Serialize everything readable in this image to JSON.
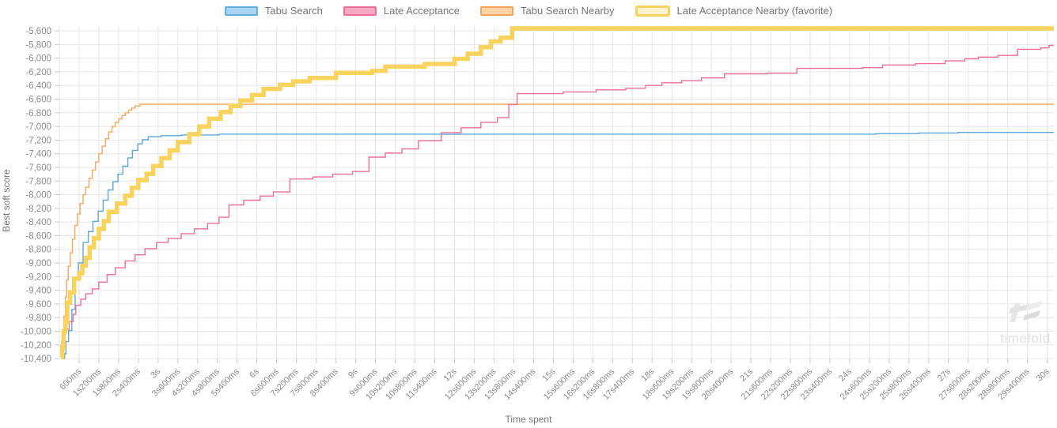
{
  "watermark": {
    "label": "timefold"
  },
  "chart_data": {
    "type": "line",
    "subtype": "step-after",
    "title": "",
    "xlabel": "Time spent",
    "ylabel": "Best soft score",
    "grid": true,
    "legend_position": "top-center",
    "x_domain_seconds": [
      0,
      30.2
    ],
    "y_domain": [
      -10480,
      -5530
    ],
    "y_ticks": [
      -5600,
      -5800,
      -6000,
      -6200,
      -6400,
      -6600,
      -6800,
      -7000,
      -7200,
      -7400,
      -7600,
      -7800,
      -8000,
      -8200,
      -8400,
      -8600,
      -8800,
      -9000,
      -9200,
      -9400,
      -9600,
      -9800,
      -10000,
      -10200,
      -10400
    ],
    "x_tick_interval_seconds": 0.6,
    "x_tick_labels": [
      "600ms",
      "1s200ms",
      "1s800ms",
      "2s400ms",
      "3s",
      "3s600ms",
      "4s200ms",
      "4s800ms",
      "5s400ms",
      "6s",
      "6s600ms",
      "7s200ms",
      "7s800ms",
      "8s400ms",
      "9s",
      "9s600ms",
      "10s200ms",
      "10s800ms",
      "11s400ms",
      "12s",
      "12s600ms",
      "13s200ms",
      "13s800ms",
      "14s400ms",
      "15s",
      "15s600ms",
      "16s200ms",
      "16s800ms",
      "17s400ms",
      "18s",
      "18s600ms",
      "19s200ms",
      "19s800ms",
      "20s400ms",
      "21s",
      "21s600ms",
      "22s200ms",
      "22s800ms",
      "23s400ms",
      "24s",
      "24s600ms",
      "25s200ms",
      "25s800ms",
      "26s400ms",
      "27s",
      "27s600ms",
      "28s200ms",
      "28s800ms",
      "29s400ms",
      "30s"
    ],
    "legend": [
      {
        "label": "Tabu Search",
        "fill": "#a9d5f2",
        "stroke": "#62aede",
        "border_width": 2
      },
      {
        "label": "Late Acceptance",
        "fill": "#f7a8c3",
        "stroke": "#ee6e99",
        "border_width": 2
      },
      {
        "label": "Tabu Search Nearby",
        "fill": "#fbd3a4",
        "stroke": "#f6a45a",
        "border_width": 2
      },
      {
        "label": "Late Acceptance Nearby (favorite)",
        "fill": "#fdf2cb",
        "stroke": "#f8d25e",
        "border_width": 3
      }
    ],
    "series": [
      {
        "name": "Tabu Search Nearby",
        "color": "#f6a85c",
        "width": 1.4,
        "points": [
          [
            0.04,
            -10250
          ],
          [
            0.07,
            -10150
          ],
          [
            0.1,
            -10000
          ],
          [
            0.14,
            -9780
          ],
          [
            0.18,
            -9500
          ],
          [
            0.22,
            -9250
          ],
          [
            0.27,
            -9050
          ],
          [
            0.33,
            -8850
          ],
          [
            0.4,
            -8650
          ],
          [
            0.47,
            -8450
          ],
          [
            0.55,
            -8280
          ],
          [
            0.63,
            -8130
          ],
          [
            0.72,
            -8000
          ],
          [
            0.8,
            -7890
          ],
          [
            0.9,
            -7760
          ],
          [
            1.0,
            -7640
          ],
          [
            1.1,
            -7520
          ],
          [
            1.2,
            -7400
          ],
          [
            1.3,
            -7290
          ],
          [
            1.4,
            -7180
          ],
          [
            1.5,
            -7080
          ],
          [
            1.6,
            -7000
          ],
          [
            1.7,
            -6940
          ],
          [
            1.8,
            -6890
          ],
          [
            1.9,
            -6840
          ],
          [
            2.0,
            -6800
          ],
          [
            2.1,
            -6760
          ],
          [
            2.2,
            -6730
          ],
          [
            2.3,
            -6700
          ],
          [
            2.45,
            -6675
          ],
          [
            30.2,
            -6675
          ]
        ]
      },
      {
        "name": "Tabu Search",
        "color": "#5da8db",
        "width": 1.4,
        "points": [
          [
            0.12,
            -10400
          ],
          [
            0.16,
            -10330
          ],
          [
            0.2,
            -10150
          ],
          [
            0.28,
            -9990
          ],
          [
            0.38,
            -9680
          ],
          [
            0.48,
            -9230
          ],
          [
            0.58,
            -9000
          ],
          [
            0.72,
            -8700
          ],
          [
            0.88,
            -8540
          ],
          [
            1.02,
            -8390
          ],
          [
            1.18,
            -8240
          ],
          [
            1.33,
            -8080
          ],
          [
            1.48,
            -7930
          ],
          [
            1.63,
            -7810
          ],
          [
            1.78,
            -7700
          ],
          [
            1.93,
            -7580
          ],
          [
            2.08,
            -7460
          ],
          [
            2.22,
            -7350
          ],
          [
            2.38,
            -7255
          ],
          [
            2.52,
            -7195
          ],
          [
            2.7,
            -7150
          ],
          [
            3.1,
            -7135
          ],
          [
            3.7,
            -7125
          ],
          [
            4.85,
            -7113
          ],
          [
            24.8,
            -7105
          ],
          [
            26.1,
            -7096
          ],
          [
            27.3,
            -7088
          ],
          [
            30.2,
            -7088
          ]
        ]
      },
      {
        "name": "Late Acceptance",
        "color": "#ee6e99",
        "width": 1.4,
        "points": [
          [
            0.05,
            -10280
          ],
          [
            0.1,
            -10140
          ],
          [
            0.18,
            -9970
          ],
          [
            0.3,
            -9860
          ],
          [
            0.42,
            -9750
          ],
          [
            0.5,
            -9620
          ],
          [
            0.65,
            -9530
          ],
          [
            0.8,
            -9450
          ],
          [
            1.0,
            -9380
          ],
          [
            1.2,
            -9280
          ],
          [
            1.45,
            -9170
          ],
          [
            1.7,
            -9070
          ],
          [
            2.0,
            -8970
          ],
          [
            2.3,
            -8880
          ],
          [
            2.6,
            -8790
          ],
          [
            2.95,
            -8700
          ],
          [
            3.3,
            -8640
          ],
          [
            3.7,
            -8570
          ],
          [
            4.1,
            -8500
          ],
          [
            4.5,
            -8420
          ],
          [
            4.85,
            -8330
          ],
          [
            5.15,
            -8150
          ],
          [
            5.6,
            -8080
          ],
          [
            6.1,
            -8020
          ],
          [
            6.5,
            -7960
          ],
          [
            7.0,
            -7770
          ],
          [
            7.7,
            -7740
          ],
          [
            8.3,
            -7700
          ],
          [
            8.9,
            -7660
          ],
          [
            9.4,
            -7450
          ],
          [
            9.9,
            -7390
          ],
          [
            10.4,
            -7330
          ],
          [
            10.9,
            -7210
          ],
          [
            11.6,
            -7090
          ],
          [
            12.2,
            -7020
          ],
          [
            12.8,
            -6940
          ],
          [
            13.3,
            -6870
          ],
          [
            13.65,
            -6680
          ],
          [
            13.9,
            -6520
          ],
          [
            15.3,
            -6495
          ],
          [
            16.3,
            -6465
          ],
          [
            17.2,
            -6440
          ],
          [
            17.8,
            -6400
          ],
          [
            18.3,
            -6360
          ],
          [
            18.9,
            -6330
          ],
          [
            19.5,
            -6290
          ],
          [
            20.2,
            -6230
          ],
          [
            21.5,
            -6220
          ],
          [
            22.4,
            -6150
          ],
          [
            24.4,
            -6140
          ],
          [
            25.0,
            -6100
          ],
          [
            26.0,
            -6080
          ],
          [
            26.9,
            -6040
          ],
          [
            27.5,
            -6010
          ],
          [
            27.9,
            -5985
          ],
          [
            28.5,
            -5960
          ],
          [
            29.1,
            -5870
          ],
          [
            29.8,
            -5850
          ],
          [
            30.05,
            -5815
          ],
          [
            30.2,
            -5815
          ]
        ]
      },
      {
        "name": "Late Acceptance Nearby (favorite)",
        "color": "#f8d45e",
        "width": 5.5,
        "points": [
          [
            0.05,
            -10380
          ],
          [
            0.09,
            -10240
          ],
          [
            0.13,
            -10000
          ],
          [
            0.18,
            -9860
          ],
          [
            0.24,
            -9580
          ],
          [
            0.33,
            -9430
          ],
          [
            0.45,
            -9230
          ],
          [
            0.6,
            -9150
          ],
          [
            0.7,
            -9040
          ],
          [
            0.8,
            -8925
          ],
          [
            0.92,
            -8770
          ],
          [
            1.05,
            -8640
          ],
          [
            1.2,
            -8500
          ],
          [
            1.35,
            -8385
          ],
          [
            1.5,
            -8250
          ],
          [
            1.75,
            -8130
          ],
          [
            2.0,
            -8015
          ],
          [
            2.2,
            -7900
          ],
          [
            2.4,
            -7785
          ],
          [
            2.65,
            -7695
          ],
          [
            2.85,
            -7580
          ],
          [
            3.1,
            -7465
          ],
          [
            3.35,
            -7350
          ],
          [
            3.6,
            -7230
          ],
          [
            3.95,
            -7115
          ],
          [
            4.25,
            -7000
          ],
          [
            4.55,
            -6885
          ],
          [
            4.9,
            -6790
          ],
          [
            5.2,
            -6700
          ],
          [
            5.5,
            -6620
          ],
          [
            5.85,
            -6540
          ],
          [
            6.2,
            -6450
          ],
          [
            6.7,
            -6390
          ],
          [
            7.1,
            -6340
          ],
          [
            7.6,
            -6290
          ],
          [
            8.4,
            -6215
          ],
          [
            9.5,
            -6185
          ],
          [
            9.9,
            -6125
          ],
          [
            11.1,
            -6085
          ],
          [
            12.0,
            -6010
          ],
          [
            12.4,
            -5935
          ],
          [
            12.8,
            -5840
          ],
          [
            13.1,
            -5755
          ],
          [
            13.4,
            -5700
          ],
          [
            13.75,
            -5565
          ],
          [
            30.2,
            -5565
          ]
        ]
      }
    ],
    "style": {
      "grid_color": "#e6e6e6",
      "tick_color": "#c9c9c9",
      "tick_label_color": "#8c8c8c",
      "axis_title_color": "#757575"
    }
  }
}
